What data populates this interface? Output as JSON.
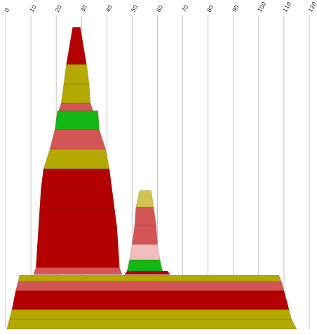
{
  "chart_data": {
    "type": "area",
    "x_axis": {
      "ticks": [
        0,
        10,
        20,
        30,
        40,
        50,
        60,
        70,
        80,
        90,
        100,
        110,
        120
      ],
      "tick_labels": [
        "0",
        "10",
        "20",
        "30",
        "40",
        "50",
        "60",
        "70",
        "80",
        "90",
        "100",
        "110",
        "120"
      ],
      "range": [
        0,
        120
      ],
      "position": "top",
      "grid": true
    },
    "colors": {
      "dark_red": "#b30000",
      "salmon": "#d45555",
      "olive": "#b3a900",
      "light_olive": "#cfc24e",
      "green": "#14b814",
      "pink": "#f0bcbc"
    },
    "stacks": [
      {
        "name_visible": false,
        "layers": [
          {
            "x0": 0.5,
            "x1": 115,
            "x0_top": 1.5,
            "x1_top": 113,
            "color": "olive"
          },
          {
            "x0": 1.5,
            "x1": 113,
            "x0_top": 2.5,
            "x1_top": 112,
            "color": "olive"
          },
          {
            "x0": 2.5,
            "x1": 112,
            "x0_top": 4,
            "x1_top": 110,
            "color": "dark_red"
          },
          {
            "x0": 4,
            "x1": 110,
            "x0_top": 5,
            "x1_top": 109,
            "color": "salmon"
          },
          {
            "x0": 5,
            "x1": 109,
            "x0_top": 5.5,
            "x1_top": 108,
            "color": "olive"
          }
        ]
      },
      {
        "name_visible": false,
        "layers": [
          {
            "x0": 11,
            "x1": 46,
            "x0_top": 12,
            "x1_top": 45,
            "color": "salmon"
          },
          {
            "x0": 12,
            "x1": 45,
            "x0_top": 12.5,
            "x1_top": 44.5,
            "color": "dark_red"
          },
          {
            "x0": 12.5,
            "x1": 44.5,
            "x0_top": 13,
            "x1_top": 44,
            "color": "dark_red"
          },
          {
            "x0": 13,
            "x1": 44,
            "x0_top": 13.5,
            "x1_top": 43,
            "color": "dark_red"
          },
          {
            "x0": 13.5,
            "x1": 43,
            "x0_top": 14,
            "x1_top": 42,
            "color": "dark_red"
          },
          {
            "x0": 14,
            "x1": 42,
            "x0_top": 15,
            "x1_top": 41,
            "color": "dark_red"
          },
          {
            "x0": 15,
            "x1": 41,
            "x0_top": 17.5,
            "x1_top": 39.5,
            "color": "olive"
          },
          {
            "x0": 17.5,
            "x1": 39.5,
            "x0_top": 19.5,
            "x1_top": 37,
            "color": "salmon"
          },
          {
            "x0": 19.5,
            "x1": 37,
            "x0_top": 20.5,
            "x1_top": 36.5,
            "color": "green"
          },
          {
            "x0": 21,
            "x1": 34.5,
            "x0_top": 22,
            "x1_top": 33.5,
            "color": "salmon"
          },
          {
            "x0": 22,
            "x1": 33.5,
            "x0_top": 23,
            "x1_top": 33,
            "color": "olive"
          },
          {
            "x0": 23,
            "x1": 33,
            "x0_top": 24,
            "x1_top": 32,
            "color": "olive"
          },
          {
            "x0": 24,
            "x1": 32,
            "x0_top": 26.5,
            "x1_top": 29.5,
            "color": "dark_red"
          }
        ]
      },
      {
        "name_visible": false,
        "layers": [
          {
            "x0": 47,
            "x1": 65,
            "x0_top": 48,
            "x1_top": 64,
            "color": "dark_red"
          },
          {
            "x0": 48,
            "x1": 62,
            "x0_top": 49,
            "x1_top": 61,
            "color": "green"
          },
          {
            "x0": 49,
            "x1": 61,
            "x0_top": 50,
            "x1_top": 60,
            "color": "pink"
          },
          {
            "x0": 50,
            "x1": 60,
            "x0_top": 51,
            "x1_top": 59.5,
            "color": "salmon"
          },
          {
            "x0": 51,
            "x1": 59.5,
            "x0_top": 51.5,
            "x1_top": 58.5,
            "color": "salmon"
          },
          {
            "x0": 51.5,
            "x1": 58.5,
            "x0_top": 53,
            "x1_top": 57.5,
            "color": "light_olive"
          }
        ]
      }
    ]
  }
}
